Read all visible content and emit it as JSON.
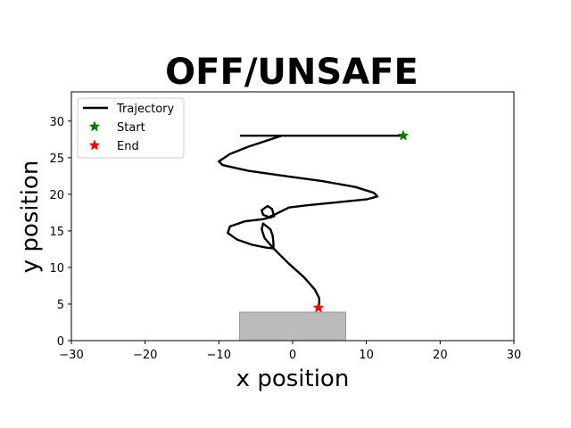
{
  "chart_data": {
    "type": "line",
    "title": "OFF/UNSAFE",
    "xlabel": "x position",
    "ylabel": "y position",
    "xlim": [
      -30,
      30
    ],
    "ylim": [
      0,
      34
    ],
    "xticks": [
      -30,
      -20,
      -10,
      0,
      10,
      20,
      30
    ],
    "yticks": [
      0,
      5,
      10,
      15,
      20,
      25,
      30
    ],
    "grid": false,
    "legend_position": "top-left",
    "series": [
      {
        "name": "Trajectory",
        "color": "#000000",
        "x": [
          15.0,
          11.0,
          7.0,
          3.0,
          -1.0,
          -4.0,
          -6.0,
          -7.0,
          -3.0,
          -1.5,
          -3.0,
          -6.0,
          -8.5,
          -10.0,
          -9.5,
          -6.0,
          -1.0,
          4.0,
          8.5,
          11.0,
          11.5,
          10.0,
          6.0,
          2.0,
          -0.5,
          -1.5,
          -2.5,
          -3.0,
          -2.8,
          -3.0,
          -4.0,
          -4.2,
          -3.4,
          -2.8,
          -2.5,
          -4.0,
          -6.5,
          -8.5,
          -8.8,
          -7.5,
          -5.5,
          -3.5,
          -2.6,
          -2.6,
          -2.7,
          -3.0,
          -3.5,
          -4.0,
          -4.2,
          -3.8,
          -2.5,
          -0.5,
          1.5,
          3.0,
          3.6,
          3.6,
          3.4
        ],
        "y": [
          28.0,
          28.0,
          28.0,
          28.0,
          28.0,
          28.0,
          28.0,
          28.0,
          28.0,
          28.0,
          27.5,
          26.5,
          25.5,
          24.5,
          24.0,
          23.2,
          22.5,
          21.8,
          21.0,
          20.2,
          19.7,
          19.3,
          18.9,
          18.5,
          18.2,
          17.7,
          17.2,
          17.0,
          16.9,
          16.8,
          17.2,
          17.8,
          18.4,
          18.0,
          17.0,
          16.6,
          16.3,
          15.6,
          14.7,
          13.8,
          13.1,
          12.7,
          12.6,
          13.3,
          14.3,
          15.2,
          15.6,
          16.0,
          15.2,
          14.0,
          12.5,
          10.5,
          8.7,
          7.0,
          5.8,
          5.0,
          4.5
        ]
      },
      {
        "name": "Start",
        "color": "#008000",
        "marker": "star",
        "x": [
          15.0
        ],
        "y": [
          28.0
        ]
      },
      {
        "name": "End",
        "color": "#ff0000",
        "marker": "star",
        "x": [
          3.5
        ],
        "y": [
          4.5
        ]
      }
    ],
    "regions": [
      {
        "shape": "rectangle",
        "x_range": [
          -7.2,
          7.2
        ],
        "y_range": [
          0,
          3.9
        ],
        "color": "#bbbbbb",
        "edge": "#999999"
      }
    ]
  }
}
